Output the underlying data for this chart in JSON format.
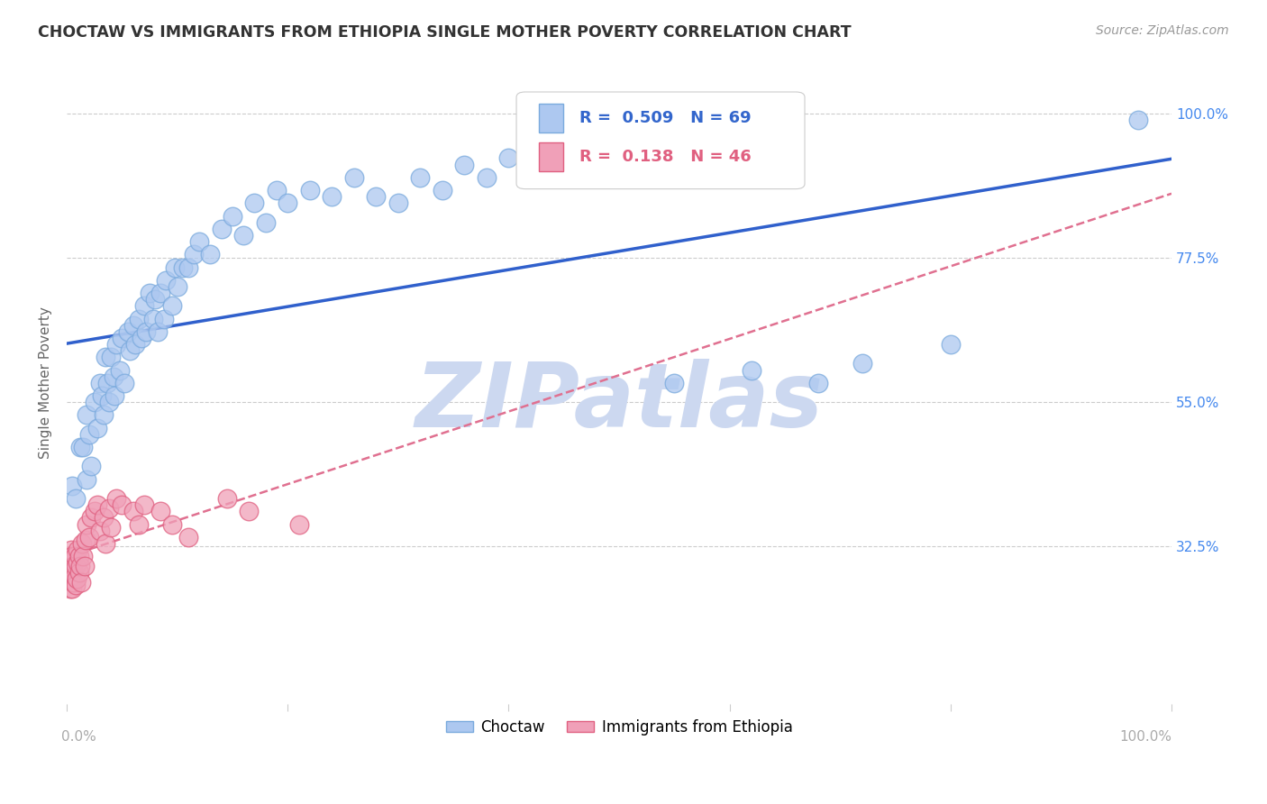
{
  "title": "CHOCTAW VS IMMIGRANTS FROM ETHIOPIA SINGLE MOTHER POVERTY CORRELATION CHART",
  "source": "Source: ZipAtlas.com",
  "ylabel": "Single Mother Poverty",
  "ytick_labels": [
    "32.5%",
    "55.0%",
    "77.5%",
    "100.0%"
  ],
  "ytick_values": [
    0.325,
    0.55,
    0.775,
    1.0
  ],
  "xmin": 0.0,
  "xmax": 1.0,
  "ymin": 0.08,
  "ymax": 1.08,
  "choctaw_color": "#adc8f0",
  "choctaw_edge": "#7aaadd",
  "ethiopia_color": "#f0a0b8",
  "ethiopia_edge": "#e06080",
  "trendline_choctaw_color": "#3060cc",
  "trendline_ethiopia_color": "#e07090",
  "watermark": "ZIPatlas",
  "watermark_color": "#ccd8f0",
  "background_color": "#ffffff",
  "choctaw_x": [
    0.005,
    0.008,
    0.012,
    0.015,
    0.018,
    0.018,
    0.02,
    0.022,
    0.025,
    0.028,
    0.03,
    0.032,
    0.033,
    0.035,
    0.037,
    0.038,
    0.04,
    0.042,
    0.043,
    0.045,
    0.048,
    0.05,
    0.052,
    0.055,
    0.057,
    0.06,
    0.062,
    0.065,
    0.068,
    0.07,
    0.072,
    0.075,
    0.078,
    0.08,
    0.082,
    0.085,
    0.088,
    0.09,
    0.095,
    0.098,
    0.1,
    0.105,
    0.11,
    0.115,
    0.12,
    0.13,
    0.14,
    0.15,
    0.16,
    0.17,
    0.18,
    0.19,
    0.2,
    0.22,
    0.24,
    0.26,
    0.28,
    0.3,
    0.32,
    0.34,
    0.36,
    0.38,
    0.4,
    0.55,
    0.62,
    0.68,
    0.72,
    0.8,
    0.97
  ],
  "choctaw_y": [
    0.42,
    0.4,
    0.48,
    0.48,
    0.43,
    0.53,
    0.5,
    0.45,
    0.55,
    0.51,
    0.58,
    0.56,
    0.53,
    0.62,
    0.58,
    0.55,
    0.62,
    0.59,
    0.56,
    0.64,
    0.6,
    0.65,
    0.58,
    0.66,
    0.63,
    0.67,
    0.64,
    0.68,
    0.65,
    0.7,
    0.66,
    0.72,
    0.68,
    0.71,
    0.66,
    0.72,
    0.68,
    0.74,
    0.7,
    0.76,
    0.73,
    0.76,
    0.76,
    0.78,
    0.8,
    0.78,
    0.82,
    0.84,
    0.81,
    0.86,
    0.83,
    0.88,
    0.86,
    0.88,
    0.87,
    0.9,
    0.87,
    0.86,
    0.9,
    0.88,
    0.92,
    0.9,
    0.93,
    0.58,
    0.6,
    0.58,
    0.61,
    0.64,
    0.99
  ],
  "ethiopia_x": [
    0.002,
    0.003,
    0.003,
    0.004,
    0.004,
    0.005,
    0.005,
    0.005,
    0.006,
    0.006,
    0.007,
    0.007,
    0.008,
    0.008,
    0.009,
    0.01,
    0.01,
    0.011,
    0.011,
    0.012,
    0.013,
    0.014,
    0.015,
    0.016,
    0.017,
    0.018,
    0.02,
    0.022,
    0.025,
    0.028,
    0.03,
    0.033,
    0.035,
    0.038,
    0.04,
    0.045,
    0.05,
    0.06,
    0.065,
    0.07,
    0.085,
    0.095,
    0.11,
    0.145,
    0.165,
    0.21
  ],
  "ethiopia_y": [
    0.29,
    0.31,
    0.26,
    0.28,
    0.32,
    0.29,
    0.31,
    0.26,
    0.295,
    0.27,
    0.28,
    0.31,
    0.295,
    0.265,
    0.275,
    0.3,
    0.32,
    0.285,
    0.31,
    0.295,
    0.27,
    0.33,
    0.31,
    0.295,
    0.335,
    0.36,
    0.34,
    0.37,
    0.38,
    0.39,
    0.35,
    0.37,
    0.33,
    0.385,
    0.355,
    0.4,
    0.39,
    0.38,
    0.36,
    0.39,
    0.38,
    0.36,
    0.34,
    0.4,
    0.38,
    0.36
  ]
}
